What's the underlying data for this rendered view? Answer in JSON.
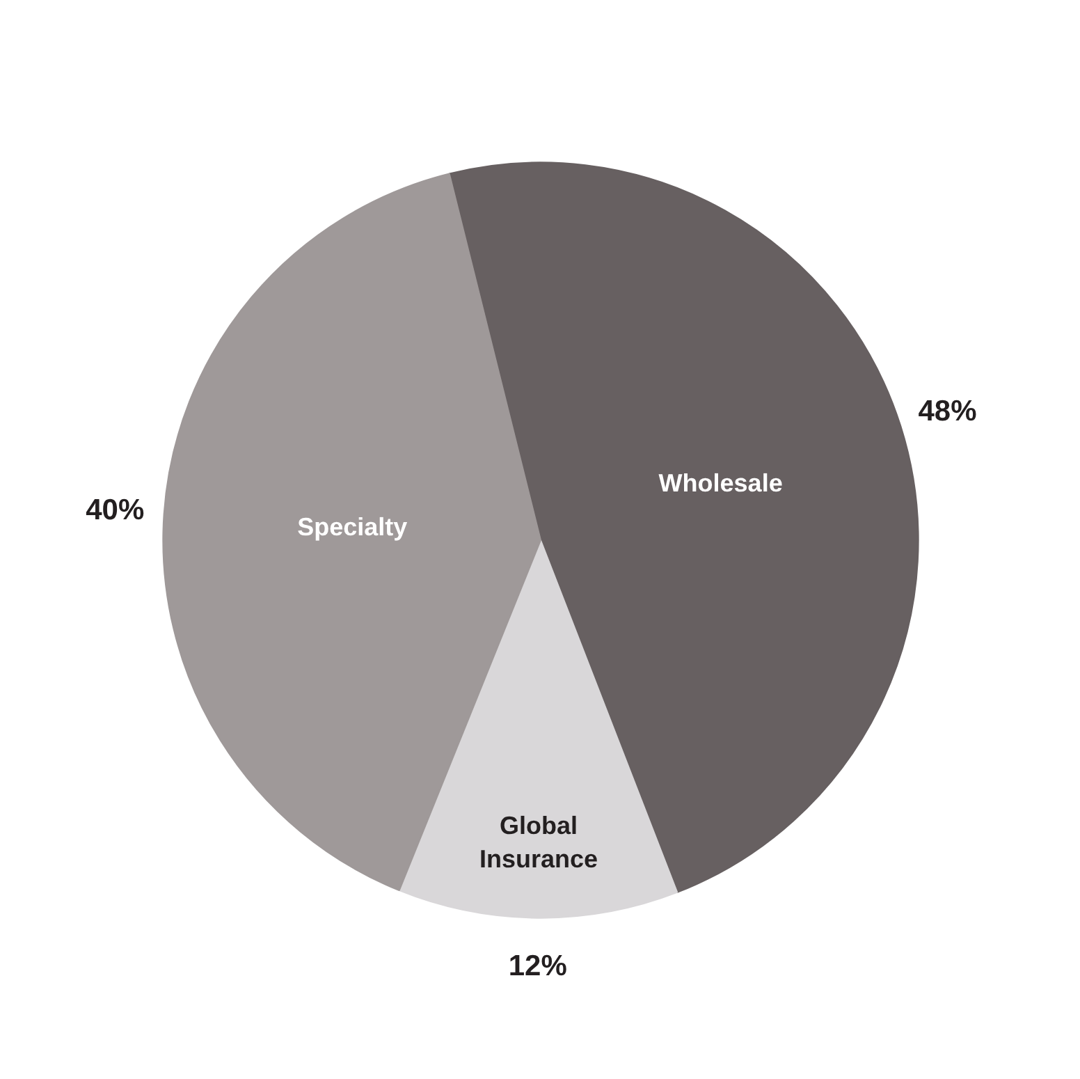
{
  "chart_data": {
    "type": "pie",
    "categories": [
      "Wholesale",
      "Global Insurance",
      "Specialty"
    ],
    "values": [
      48,
      12,
      40
    ],
    "colors": [
      "#676061",
      "#d9d7d9",
      "#9f9999"
    ],
    "value_labels": [
      "48%",
      "12%",
      "40%"
    ]
  }
}
